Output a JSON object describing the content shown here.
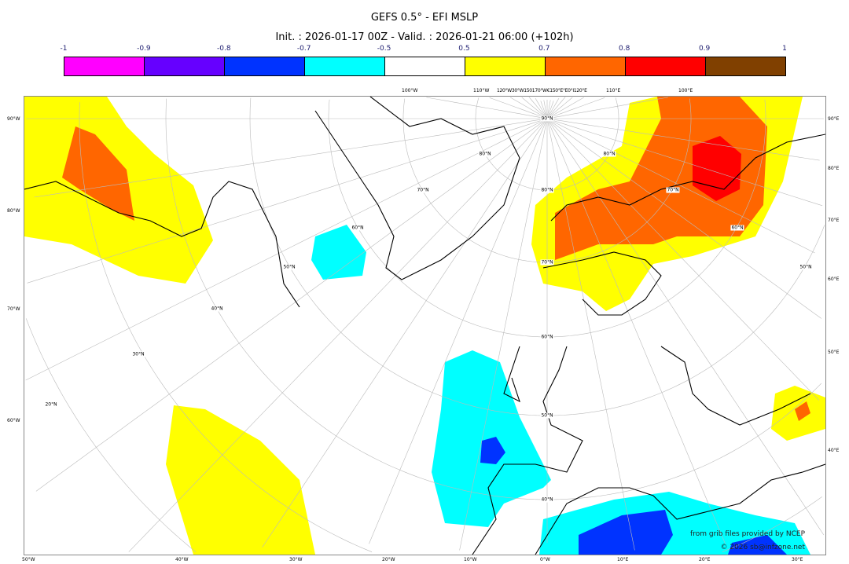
{
  "title": "GEFS 0.5° - EFI MSLP",
  "subtitle": "Init. : 2026-01-17 00Z - Valid. : 2026-01-21 06:00 (+102h)",
  "colorbar": {
    "ticks": [
      "-1",
      "-0.9",
      "-0.8",
      "-0.7",
      "-0.5",
      "0.5",
      "0.7",
      "0.8",
      "0.9",
      "1"
    ],
    "colors": [
      "#ff00ff",
      "#6600ff",
      "#0033ff",
      "#00ffff",
      "#ffffff",
      "#ffff00",
      "#ff6600",
      "#ff0000",
      "#804000"
    ]
  },
  "map": {
    "left_labels": [
      "90°W",
      "80°W",
      "70°W",
      "60°W"
    ],
    "right_labels": [
      "90°E",
      "80°E",
      "70°E",
      "60°E",
      "50°E",
      "40°E"
    ],
    "bottom_labels": [
      "50°W",
      "40°W",
      "30°W",
      "20°W",
      "10°W",
      "0°W",
      "10°E",
      "20°E",
      "30°E"
    ],
    "top_labels": [
      "100°W",
      "110°W",
      "120°W30°W150170°W€150°E°E0°I120°E",
      "110°E",
      "100°E"
    ],
    "lat_labels_west": [
      "80°N",
      "70°N",
      "60°N",
      "50°N",
      "40°N",
      "30°N",
      "20°N"
    ],
    "lat_labels_center": [
      "90°N",
      "80°N",
      "70°N",
      "60°N",
      "50°N",
      "40°N"
    ],
    "lat_labels_east": [
      "80°N",
      "70°N",
      "60°N",
      "50°N"
    ]
  },
  "credit": {
    "source": "from grib files provided by NCEP",
    "copyright": "© 2026 sb@infzone.net"
  }
}
